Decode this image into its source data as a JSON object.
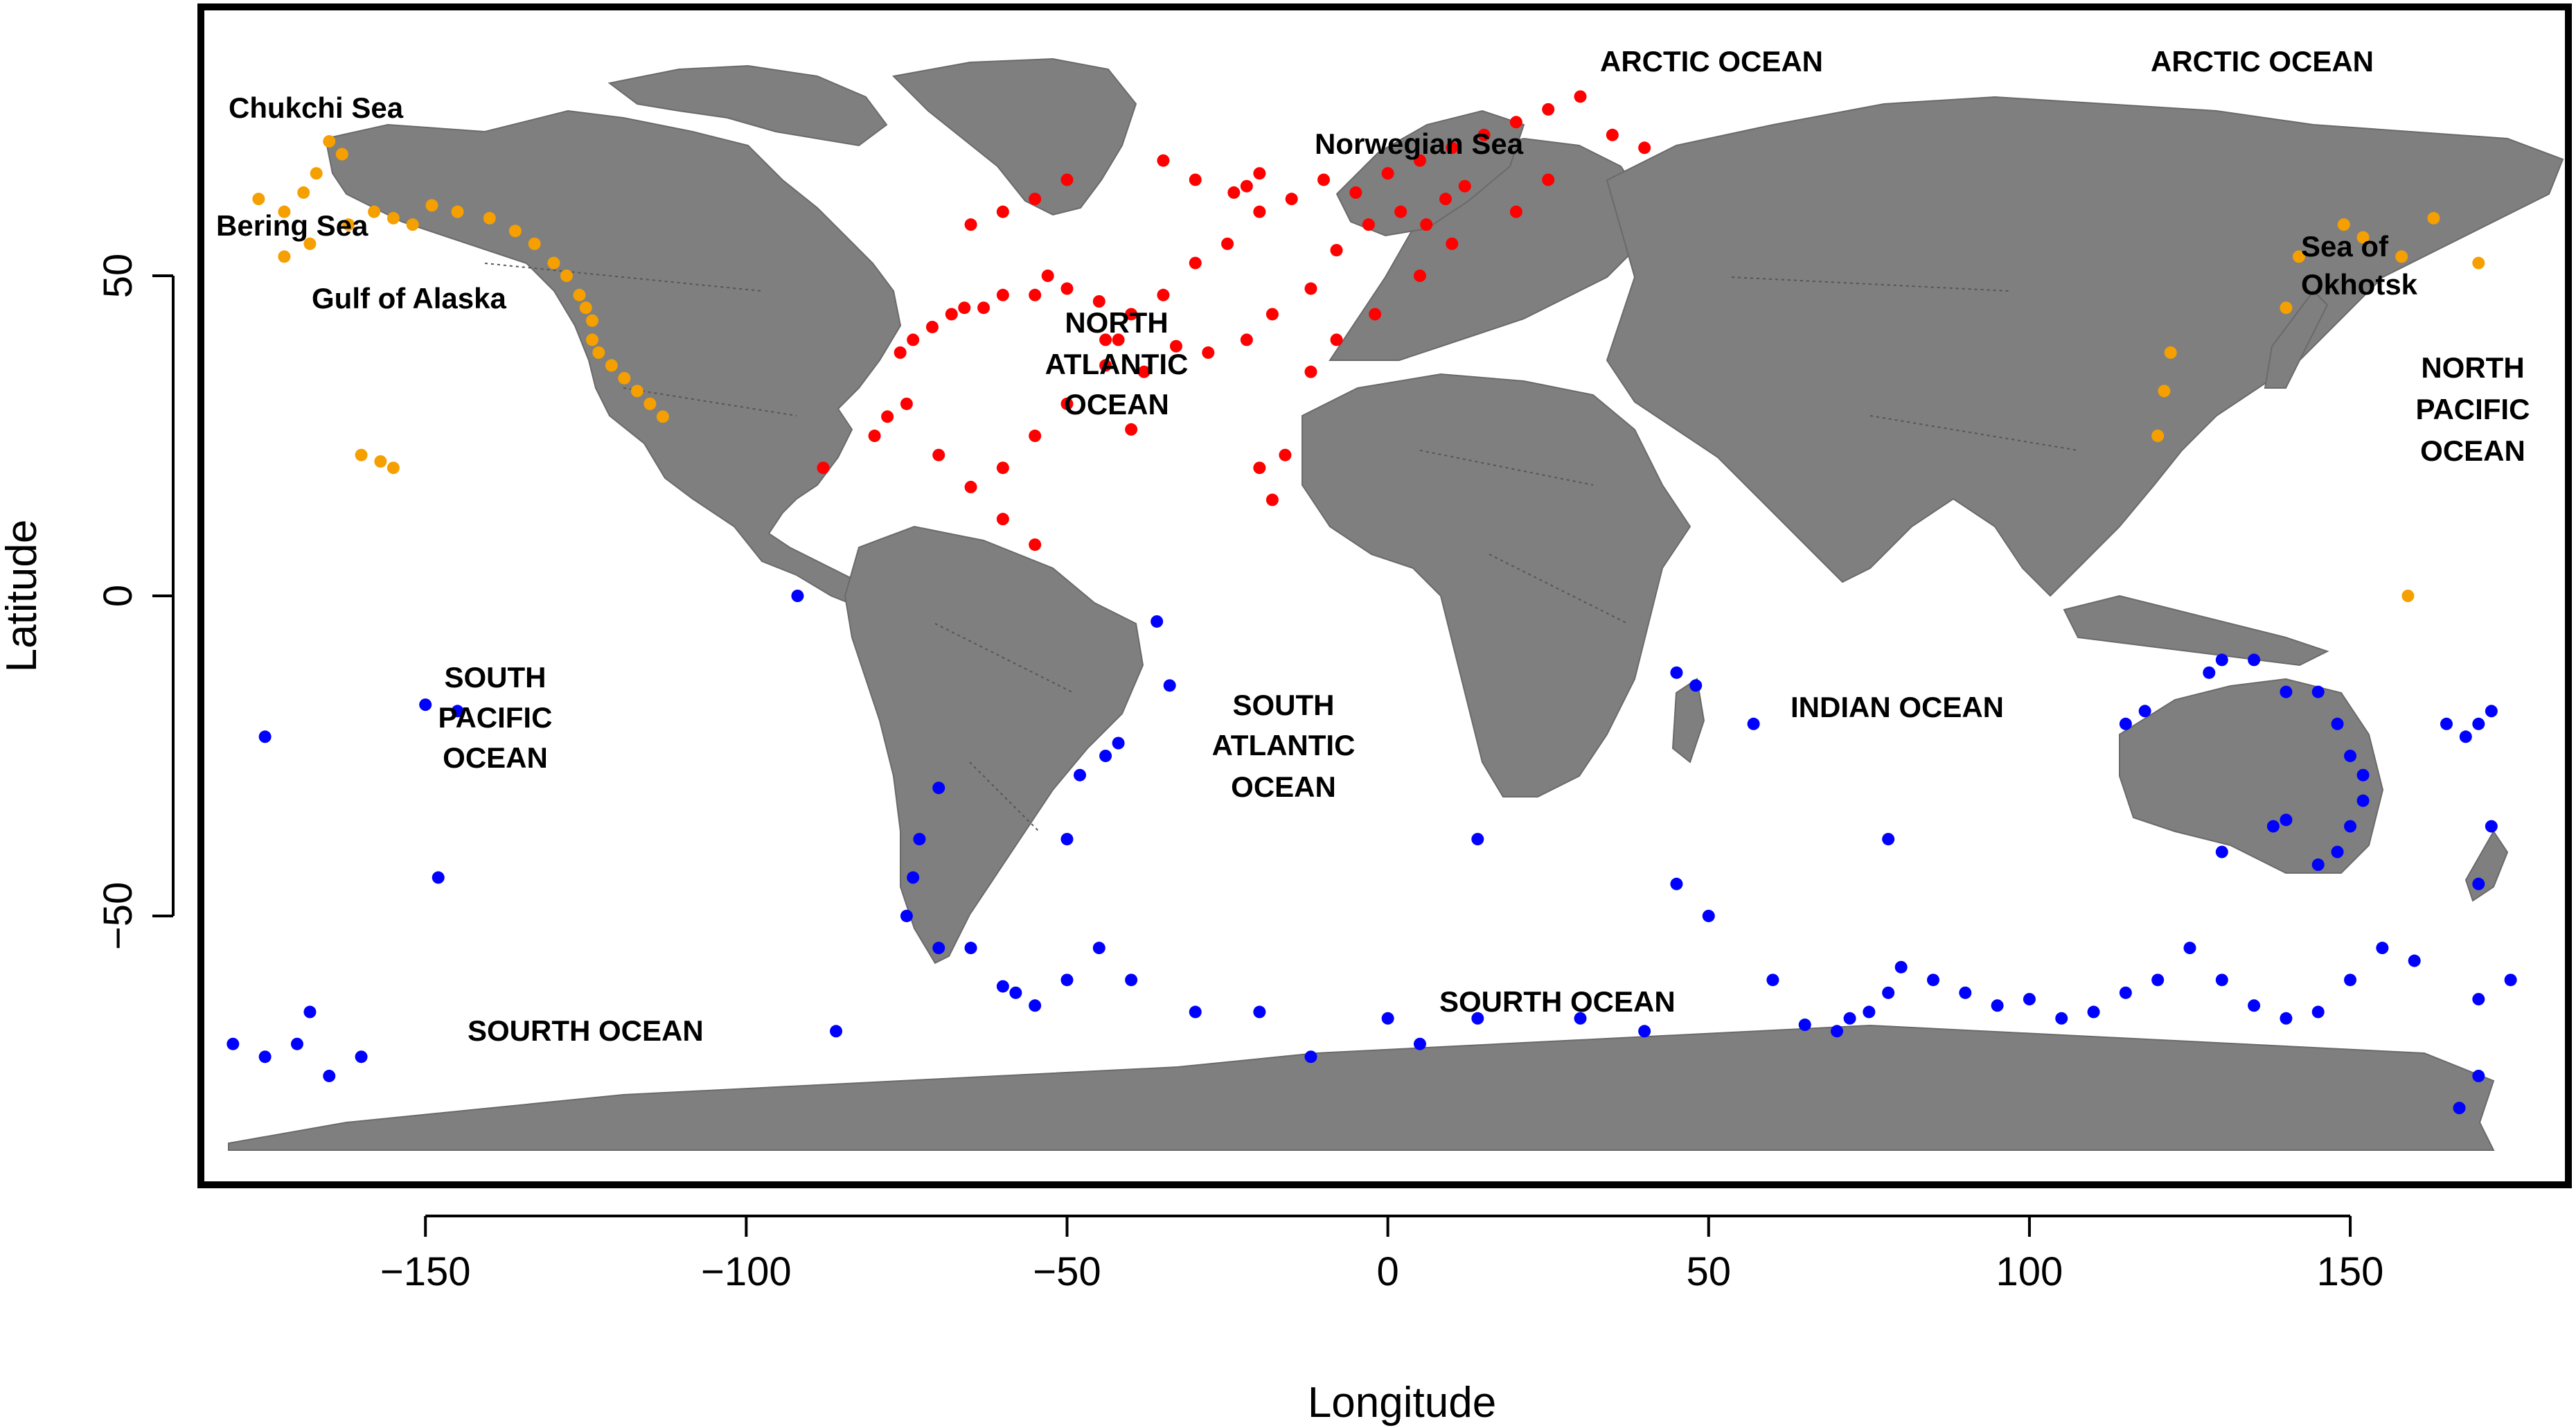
{
  "chart_data": {
    "type": "scatter",
    "title": "",
    "xlabel": "Longitude",
    "ylabel": "Latitude",
    "xlim": [
      -185,
      184
    ],
    "ylim": [
      -92,
      92
    ],
    "x_ticks": [
      -150,
      -100,
      -50,
      0,
      50,
      100,
      150
    ],
    "y_ticks": [
      -50,
      0,
      50
    ],
    "grid": false,
    "legend": "none",
    "series": [
      {
        "color": "#f5a000",
        "points": [
          [
            -176,
            62
          ],
          [
            -172,
            60
          ],
          [
            -169,
            63
          ],
          [
            -167,
            66
          ],
          [
            -165,
            71
          ],
          [
            -163,
            69
          ],
          [
            -168,
            55
          ],
          [
            -172,
            53
          ],
          [
            -162,
            58
          ],
          [
            -158,
            60
          ],
          [
            -155,
            59
          ],
          [
            -152,
            58
          ],
          [
            -149,
            61
          ],
          [
            -145,
            60
          ],
          [
            -140,
            59
          ],
          [
            -136,
            57
          ],
          [
            -133,
            55
          ],
          [
            -130,
            52
          ],
          [
            -128,
            50
          ],
          [
            -126,
            47
          ],
          [
            -125,
            45
          ],
          [
            -124,
            43
          ],
          [
            -124,
            40
          ],
          [
            -123,
            38
          ],
          [
            -121,
            36
          ],
          [
            -119,
            34
          ],
          [
            -117,
            32
          ],
          [
            -115,
            30
          ],
          [
            -113,
            28
          ],
          [
            -160,
            22
          ],
          [
            -157,
            21
          ],
          [
            -155,
            20
          ],
          [
            122,
            38
          ],
          [
            121,
            32
          ],
          [
            120,
            25
          ],
          [
            140,
            45
          ],
          [
            142,
            53
          ],
          [
            149,
            58
          ],
          [
            152,
            56
          ],
          [
            158,
            53
          ],
          [
            163,
            59
          ],
          [
            170,
            52
          ],
          [
            159,
            0
          ]
        ]
      },
      {
        "color": "#ff0000",
        "points": [
          [
            -76,
            38
          ],
          [
            -74,
            40
          ],
          [
            -71,
            42
          ],
          [
            -68,
            44
          ],
          [
            -66,
            45
          ],
          [
            -63,
            45
          ],
          [
            -60,
            47
          ],
          [
            -55,
            47
          ],
          [
            -53,
            50
          ],
          [
            -50,
            48
          ],
          [
            -45,
            46
          ],
          [
            -40,
            44
          ],
          [
            -35,
            47
          ],
          [
            -30,
            52
          ],
          [
            -25,
            55
          ],
          [
            -20,
            60
          ],
          [
            -15,
            62
          ],
          [
            -10,
            65
          ],
          [
            -5,
            63
          ],
          [
            0,
            66
          ],
          [
            5,
            68
          ],
          [
            10,
            70
          ],
          [
            15,
            72
          ],
          [
            20,
            74
          ],
          [
            25,
            76
          ],
          [
            30,
            78
          ],
          [
            35,
            72
          ],
          [
            40,
            70
          ],
          [
            -3,
            58
          ],
          [
            2,
            60
          ],
          [
            6,
            58
          ],
          [
            9,
            62
          ],
          [
            12,
            64
          ],
          [
            -8,
            54
          ],
          [
            -12,
            48
          ],
          [
            -18,
            44
          ],
          [
            -22,
            40
          ],
          [
            -28,
            38
          ],
          [
            -33,
            39
          ],
          [
            -38,
            35
          ],
          [
            -44,
            40
          ],
          [
            -50,
            30
          ],
          [
            -55,
            25
          ],
          [
            -60,
            20
          ],
          [
            -65,
            17
          ],
          [
            -70,
            22
          ],
          [
            -75,
            30
          ],
          [
            -78,
            28
          ],
          [
            -80,
            25
          ],
          [
            -40,
            26
          ],
          [
            -20,
            20
          ],
          [
            -16,
            22
          ],
          [
            -18,
            15
          ],
          [
            -12,
            35
          ],
          [
            -8,
            40
          ],
          [
            -2,
            44
          ],
          [
            5,
            50
          ],
          [
            10,
            55
          ],
          [
            20,
            60
          ],
          [
            25,
            65
          ],
          [
            -20,
            66
          ],
          [
            -22,
            64
          ],
          [
            -24,
            63
          ],
          [
            -30,
            65
          ],
          [
            -35,
            68
          ],
          [
            -50,
            65
          ],
          [
            -55,
            62
          ],
          [
            -60,
            60
          ],
          [
            -65,
            58
          ],
          [
            -42,
            40
          ],
          [
            -44,
            36
          ],
          [
            -60,
            12
          ],
          [
            -55,
            8
          ],
          [
            -88,
            20
          ]
        ]
      },
      {
        "color": "#0000ff",
        "points": [
          [
            -92,
            0
          ],
          [
            -36,
            -4
          ],
          [
            -34,
            -14
          ],
          [
            -42,
            -23
          ],
          [
            -44,
            -25
          ],
          [
            -48,
            -28
          ],
          [
            -50,
            -38
          ],
          [
            -70,
            -30
          ],
          [
            -73,
            -38
          ],
          [
            -74,
            -44
          ],
          [
            -75,
            -50
          ],
          [
            -70,
            -55
          ],
          [
            -65,
            -55
          ],
          [
            -60,
            -61
          ],
          [
            -58,
            -62
          ],
          [
            -55,
            -64
          ],
          [
            -50,
            -60
          ],
          [
            -45,
            -55
          ],
          [
            -40,
            -60
          ],
          [
            -30,
            -65
          ],
          [
            -20,
            -65
          ],
          [
            -12,
            -72
          ],
          [
            0,
            -66
          ],
          [
            5,
            -70
          ],
          [
            14,
            -38
          ],
          [
            14,
            -66
          ],
          [
            30,
            -66
          ],
          [
            40,
            -68
          ],
          [
            45,
            -45
          ],
          [
            50,
            -50
          ],
          [
            57,
            -20
          ],
          [
            45,
            -12
          ],
          [
            48,
            -14
          ],
          [
            60,
            -60
          ],
          [
            65,
            -67
          ],
          [
            70,
            -68
          ],
          [
            72,
            -66
          ],
          [
            75,
            -65
          ],
          [
            78,
            -62
          ],
          [
            80,
            -58
          ],
          [
            85,
            -60
          ],
          [
            90,
            -62
          ],
          [
            95,
            -64
          ],
          [
            100,
            -63
          ],
          [
            105,
            -66
          ],
          [
            110,
            -65
          ],
          [
            115,
            -62
          ],
          [
            120,
            -60
          ],
          [
            125,
            -55
          ],
          [
            130,
            -60
          ],
          [
            135,
            -64
          ],
          [
            140,
            -66
          ],
          [
            145,
            -65
          ],
          [
            150,
            -60
          ],
          [
            155,
            -55
          ],
          [
            160,
            -57
          ],
          [
            170,
            -63
          ],
          [
            78,
            -38
          ],
          [
            115,
            -20
          ],
          [
            118,
            -18
          ],
          [
            128,
            -12
          ],
          [
            130,
            -10
          ],
          [
            135,
            -10
          ],
          [
            140,
            -15
          ],
          [
            145,
            -15
          ],
          [
            148,
            -20
          ],
          [
            150,
            -25
          ],
          [
            152,
            -28
          ],
          [
            152,
            -32
          ],
          [
            150,
            -36
          ],
          [
            148,
            -40
          ],
          [
            145,
            -42
          ],
          [
            140,
            -35
          ],
          [
            138,
            -36
          ],
          [
            130,
            -40
          ],
          [
            165,
            -20
          ],
          [
            168,
            -22
          ],
          [
            170,
            -20
          ],
          [
            172,
            -18
          ],
          [
            170,
            -45
          ],
          [
            172,
            -36
          ],
          [
            175,
            -60
          ],
          [
            167,
            -80
          ],
          [
            170,
            -75
          ],
          [
            -150,
            -17
          ],
          [
            -145,
            -18
          ],
          [
            -148,
            -44
          ],
          [
            -175,
            -22
          ],
          [
            -180,
            -70
          ],
          [
            -175,
            -72
          ],
          [
            -168,
            -65
          ],
          [
            -165,
            -75
          ],
          [
            -170,
            -70
          ],
          [
            -160,
            -72
          ],
          [
            -86,
            -68
          ]
        ]
      }
    ],
    "region_labels": [
      "Chukchi Sea",
      "Bering Sea",
      "Gulf  of Alaska",
      "ARCTIC OCEAN",
      "ARCTIC OCEAN",
      "Norwegian Sea",
      "NORTH",
      "ATLANTIC",
      "OCEAN",
      "Sea of",
      "Okhotsk",
      "NORTH",
      "PACIFIC",
      "OCEAN",
      "SOUTH",
      "PACIFIC",
      "OCEAN",
      "SOUTH",
      "ATLANTIC",
      "OCEAN",
      "INDIAN OCEAN",
      "SOURTH OCEAN",
      "SOURTH OCEAN"
    ]
  },
  "style": {
    "land_color": "#7f7f7f",
    "frame_color": "#000000",
    "background": "#ffffff"
  }
}
